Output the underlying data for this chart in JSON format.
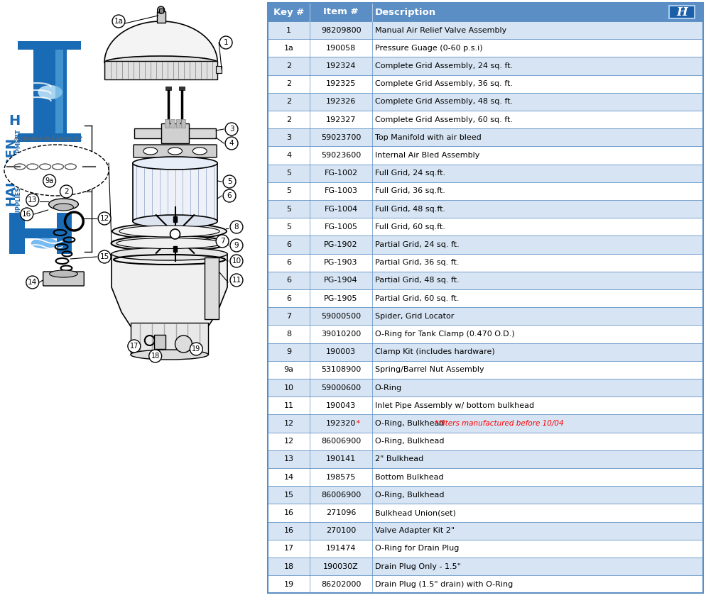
{
  "table_rows": [
    [
      "1",
      "98209800",
      "Manual Air Relief Valve Assembly",
      false
    ],
    [
      "1a",
      "190058",
      "Pressure Guage (0-60 p.s.i)",
      false
    ],
    [
      "2",
      "192324",
      "Complete Grid Assembly, 24 sq. ft.",
      false
    ],
    [
      "2",
      "192325",
      "Complete Grid Assembly, 36 sq. ft.",
      false
    ],
    [
      "2",
      "192326",
      "Complete Grid Assembly, 48 sq. ft.",
      false
    ],
    [
      "2",
      "192327",
      "Complete Grid Assembly, 60 sq. ft.",
      false
    ],
    [
      "3",
      "59023700",
      "Top Manifold with air bleed",
      false
    ],
    [
      "4",
      "59023600",
      "Internal Air Bled Assembly",
      false
    ],
    [
      "5",
      "FG-1002",
      "Full Grid, 24 sq.ft.",
      false
    ],
    [
      "5",
      "FG-1003",
      "Full Grid, 36 sq.ft.",
      false
    ],
    [
      "5",
      "FG-1004",
      "Full Grid, 48 sq.ft.",
      false
    ],
    [
      "5",
      "FG-1005",
      "Full Grid, 60 sq.ft.",
      false
    ],
    [
      "6",
      "PG-1902",
      "Partial Grid, 24 sq. ft.",
      false
    ],
    [
      "6",
      "PG-1903",
      "Partial Grid, 36 sq. ft.",
      false
    ],
    [
      "6",
      "PG-1904",
      "Partial Grid, 48 sq. ft.",
      false
    ],
    [
      "6",
      "PG-1905",
      "Partial Grid, 60 sq. ft.",
      false
    ],
    [
      "7",
      "59000500",
      "Spider, Grid Locator",
      false
    ],
    [
      "8",
      "39010200",
      "O-Ring for Tank Clamp (0.470 O.D.)",
      false
    ],
    [
      "9",
      "190003",
      "Clamp Kit (includes hardware)",
      false
    ],
    [
      "9a",
      "53108900",
      "Spring/Barrel Nut Assembly",
      false
    ],
    [
      "10",
      "59000600",
      "O-Ring",
      false
    ],
    [
      "11",
      "190043",
      "Inlet Pipe Assembly w/ bottom bulkhead",
      false
    ],
    [
      "12",
      "192320",
      "O-Ring, Bulkhead",
      true
    ],
    [
      "12",
      "86006900",
      "O-Ring, Bulkhead",
      false
    ],
    [
      "13",
      "190141",
      "2\" Bulkhead",
      false
    ],
    [
      "14",
      "198575",
      "Bottom Bulkhead",
      false
    ],
    [
      "15",
      "86006900",
      "O-Ring, Bulkhead",
      false
    ],
    [
      "16",
      "271096",
      "Bulkhead Union(set)",
      false
    ],
    [
      "16",
      "270100",
      "Valve Adapter Kit 2\"",
      false
    ],
    [
      "17",
      "191474",
      "O-Ring for Drain Plug",
      false
    ],
    [
      "18",
      "190030Z",
      "Drain Plug Only - 1.5\"",
      false
    ],
    [
      "19",
      "86202000",
      "Drain Plug (1.5\" drain) with O-Ring",
      false
    ]
  ],
  "red_note": "*filters manufactured before 10/04",
  "header_bg": "#5b8ec4",
  "header_fg": "#ffffff",
  "row_bg_even": "#d6e4f3",
  "row_bg_odd": "#ffffff",
  "border_color": "#5b8ec4",
  "logo_blue_dark": "#1155a0",
  "logo_blue_mid": "#2277cc",
  "logo_blue_light": "#66aaee",
  "background": "#ffffff",
  "table_font_size": 8.0,
  "header_font_size": 9.5
}
